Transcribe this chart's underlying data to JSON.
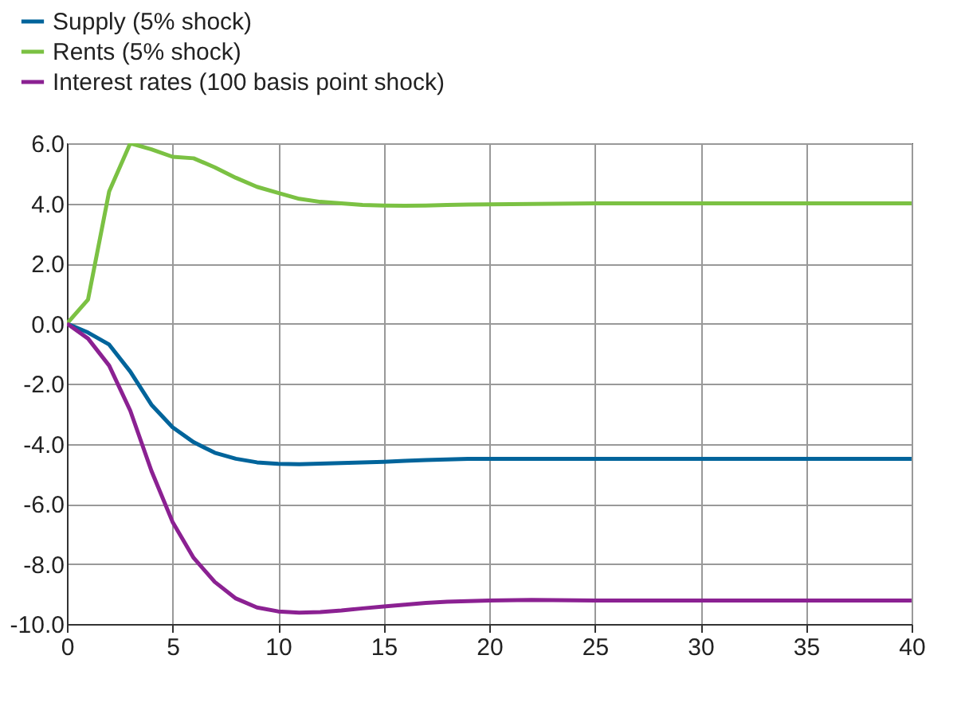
{
  "chart_data": {
    "type": "line",
    "x": [
      0,
      1,
      2,
      3,
      4,
      5,
      6,
      7,
      8,
      9,
      10,
      11,
      12,
      13,
      14,
      15,
      16,
      17,
      18,
      19,
      20,
      22,
      25,
      30,
      35,
      40
    ],
    "series": [
      {
        "name": "Supply (5% shock)",
        "color": "#00649b",
        "values": [
          0,
          -0.3,
          -0.7,
          -1.6,
          -2.7,
          -3.45,
          -3.95,
          -4.3,
          -4.5,
          -4.62,
          -4.67,
          -4.68,
          -4.66,
          -4.64,
          -4.62,
          -4.6,
          -4.57,
          -4.54,
          -4.52,
          -4.5,
          -4.5,
          -4.5,
          -4.5,
          -4.5,
          -4.5,
          -4.5
        ]
      },
      {
        "name": "Rents (5% shock)",
        "color": "#7bc143",
        "values": [
          0,
          0.8,
          4.4,
          6.0,
          5.8,
          5.55,
          5.5,
          5.2,
          4.85,
          4.55,
          4.35,
          4.15,
          4.05,
          4.0,
          3.95,
          3.93,
          3.92,
          3.93,
          3.95,
          3.96,
          3.97,
          3.98,
          4.0,
          4.0,
          4.0,
          4.0
        ]
      },
      {
        "name": "Interest rates (100 basis point shock)",
        "color": "#8b2192",
        "values": [
          0,
          -0.5,
          -1.4,
          -2.9,
          -4.9,
          -6.6,
          -7.8,
          -8.6,
          -9.15,
          -9.45,
          -9.58,
          -9.62,
          -9.6,
          -9.55,
          -9.48,
          -9.42,
          -9.36,
          -9.3,
          -9.26,
          -9.24,
          -9.22,
          -9.2,
          -9.22,
          -9.22,
          -9.22,
          -9.22
        ]
      }
    ],
    "xlim": [
      0,
      40
    ],
    "xticks": [
      0,
      5,
      10,
      15,
      20,
      25,
      30,
      35,
      40
    ],
    "ylim": [
      -10,
      6
    ],
    "yticks": [
      {
        "value": -10,
        "label": "-10.0"
      },
      {
        "value": -8,
        "label": "-8.0"
      },
      {
        "value": -6,
        "label": "-6.0"
      },
      {
        "value": -4,
        "label": "-4.0"
      },
      {
        "value": -2,
        "label": "-2.0"
      },
      {
        "value": 0,
        "label": "0.0"
      },
      {
        "value": 2,
        "label": "2.0"
      },
      {
        "value": 4,
        "label": "4.0"
      },
      {
        "value": 6,
        "label": "6.0"
      }
    ],
    "grid": true,
    "legend": "top left",
    "marker": "none",
    "line_style": "solid"
  }
}
